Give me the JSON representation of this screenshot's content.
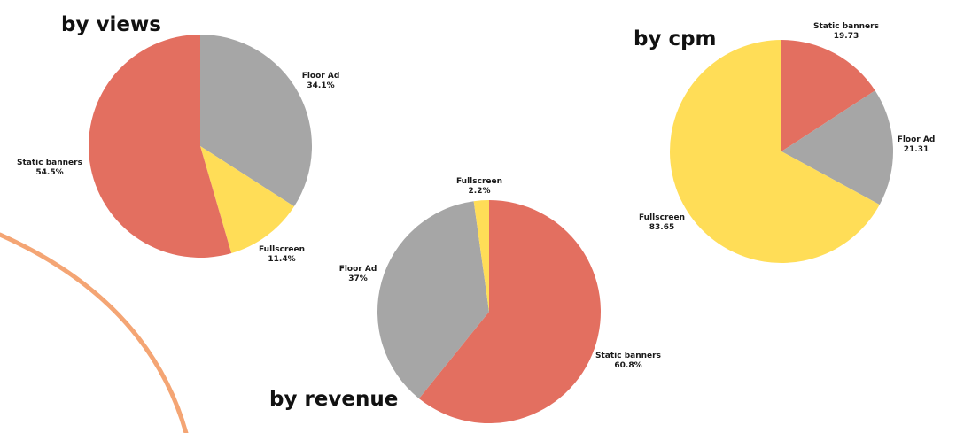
{
  "colors": {
    "Static banners": "#E36F60",
    "Floor Ad": "#A6A6A6",
    "Fullscreen": "#FFDD57",
    "decorative_arc": "#F4A574"
  },
  "chart_data": [
    {
      "type": "pie",
      "title": "by views",
      "slices": [
        {
          "label": "Floor Ad",
          "value": 34.1,
          "display": "34.1%"
        },
        {
          "label": "Fullscreen",
          "value": 11.4,
          "display": "11.4%"
        },
        {
          "label": "Static banners",
          "value": 54.5,
          "display": "54.5%"
        }
      ]
    },
    {
      "type": "pie",
      "title": "by revenue",
      "slices": [
        {
          "label": "Static banners",
          "value": 60.8,
          "display": "60.8%"
        },
        {
          "label": "Floor Ad",
          "value": 37,
          "display": "37%"
        },
        {
          "label": "Fullscreen",
          "value": 2.2,
          "display": "2.2%"
        }
      ]
    },
    {
      "type": "pie",
      "title": "by cpm",
      "slices": [
        {
          "label": "Static banners",
          "value": 19.73,
          "display": "19.73"
        },
        {
          "label": "Floor Ad",
          "value": 21.31,
          "display": "21.31"
        },
        {
          "label": "Fullscreen",
          "value": 83.65,
          "display": "83.65"
        }
      ]
    }
  ]
}
